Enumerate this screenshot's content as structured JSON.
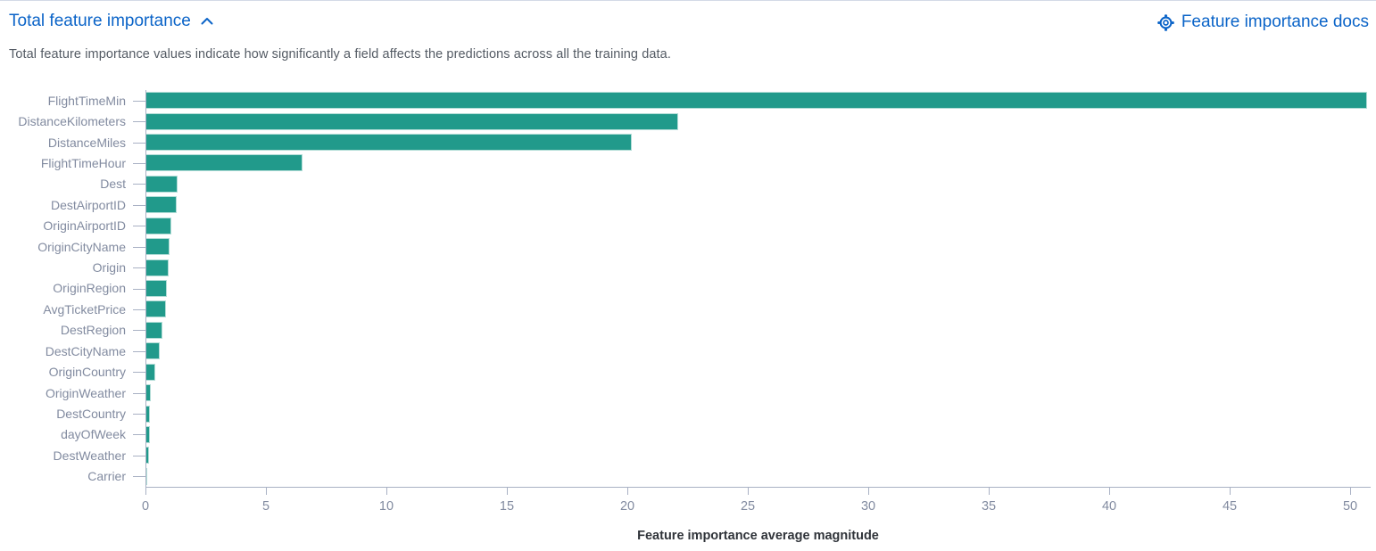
{
  "header": {
    "title": "Total feature importance",
    "docs_link_label": "Feature importance docs"
  },
  "description": "Total feature importance values indicate how significantly a field affects the predictions across all the training data.",
  "icons": {
    "collapse": "chevron-up-icon",
    "docs": "help-lifebuoy-icon"
  },
  "colors": {
    "bar": "#219a8b",
    "link_blue": "#0b64c8",
    "axis_label": "#828ba0",
    "axis_line": "#a9b1c4",
    "description_text": "#545b64",
    "axis_title_text": "#2f3339"
  },
  "chart_data": {
    "type": "bar",
    "orientation": "horizontal",
    "title": "Total feature importance",
    "xlabel": "Feature importance average magnitude",
    "ylabel": "",
    "categories": [
      "FlightTimeMin",
      "DistanceKilometers",
      "DistanceMiles",
      "FlightTimeHour",
      "Dest",
      "DestAirportID",
      "OriginAirportID",
      "OriginCityName",
      "Origin",
      "OriginRegion",
      "AvgTicketPrice",
      "DestRegion",
      "DestCityName",
      "OriginCountry",
      "OriginWeather",
      "DestCountry",
      "dayOfWeek",
      "DestWeather",
      "Carrier"
    ],
    "values": [
      50.7,
      22.1,
      20.2,
      6.5,
      1.34,
      1.3,
      1.07,
      1.0,
      0.95,
      0.9,
      0.84,
      0.72,
      0.6,
      0.42,
      0.21,
      0.19,
      0.17,
      0.15,
      0.06
    ],
    "xlim": [
      0,
      50.85
    ],
    "xticks": [
      0,
      5,
      10,
      15,
      20,
      25,
      30,
      35,
      40,
      45,
      50
    ],
    "grid": false,
    "legend": false
  }
}
